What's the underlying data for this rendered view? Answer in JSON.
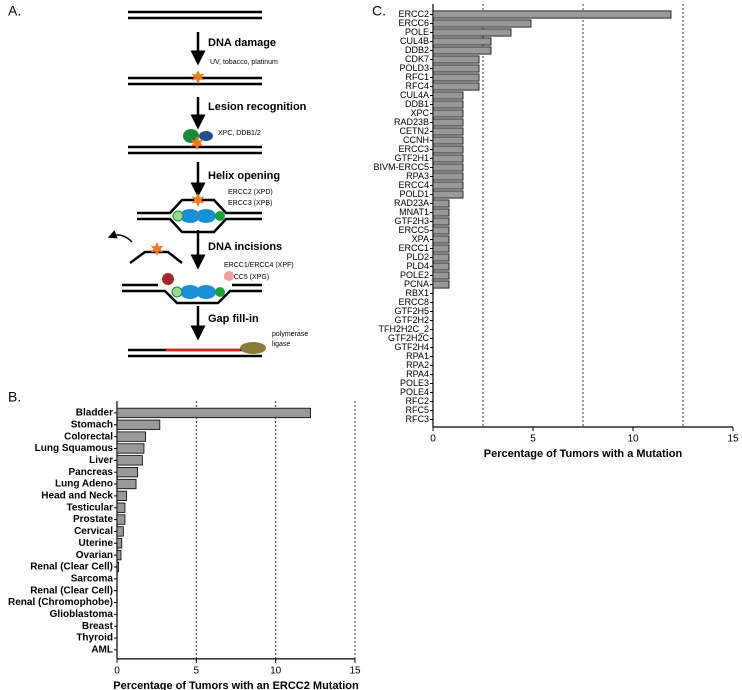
{
  "diagram": {
    "label": "A.",
    "steps": [
      {
        "title": "DNA damage",
        "notes": [
          "UV, tobacco, platinum"
        ]
      },
      {
        "title": "Lesion recognition",
        "notes": [
          "XPC, DDB1/2"
        ]
      },
      {
        "title": "Helix opening",
        "notes": [
          "ERCC2 (XPD)",
          "ERCC3 (XPB)"
        ]
      },
      {
        "title": "DNA incisions",
        "notes": [
          "ERCC1/ERCC4 (XPF)",
          "ERCC5 (XPG)"
        ]
      },
      {
        "title": "Gap fill-in",
        "notes": [
          "polymerase",
          "ligase"
        ]
      }
    ]
  },
  "chart_data": [
    {
      "type": "bar",
      "orientation": "horizontal",
      "panel_label": "B.",
      "x_label": "Percentage of Tumors with an ERCC2 Mutation",
      "categories": [
        "Bladder",
        "Stomach",
        "Colorectal",
        "Lung Squamous",
        "Liver",
        "Pancreas",
        "Lung Adeno",
        "Head and Neck",
        "Testicular",
        "Prostate",
        "Cervical",
        "Uterine",
        "Ovarian",
        "Renal (Clear Cell)",
        "Sarcoma",
        "Renal (Clear Cell)",
        "Renal (Chromophobe)",
        "Glioblastoma",
        "Breast",
        "Thyroid",
        "AML"
      ],
      "values": [
        12.2,
        2.7,
        1.8,
        1.7,
        1.6,
        1.3,
        1.2,
        0.6,
        0.5,
        0.5,
        0.4,
        0.3,
        0.25,
        0.1,
        0,
        0,
        0,
        0,
        0,
        0,
        0
      ],
      "color": "#999999",
      "xlim": [
        0,
        15
      ],
      "xticks": [
        0,
        5,
        10,
        15
      ],
      "grid_lines": [
        5,
        10,
        15
      ]
    },
    {
      "type": "bar",
      "orientation": "horizontal",
      "panel_label": "C.",
      "x_label": "Percentage of Tumors with a Mutation",
      "categories": [
        "ERCC2",
        "ERCC6",
        "POLE",
        "CUL4B",
        "DDB2",
        "CDK7",
        "POLD3",
        "RFC1",
        "RFC4",
        "CUL4A",
        "DDB1",
        "XPC",
        "RAD23B",
        "CETN2",
        "CCNH",
        "ERCC3",
        "GTF2H1",
        "BIVM-ERCC5",
        "RPA3",
        "ERCC4",
        "POLD1",
        "RAD23A",
        "MNAT1",
        "GTF2H3",
        "ERCC5",
        "XPA",
        "ERCC1",
        "PLD2",
        "PLD4",
        "POLE2",
        "PCNA",
        "RBX1",
        "ERCC8",
        "GTF2H5",
        "GTF2H2",
        "TFH2H2C_2",
        "GTF2H2C",
        "GTF2H4",
        "RPA1",
        "RPA2",
        "RPA4",
        "POLE3",
        "POLE4",
        "RFC2",
        "RFC5",
        "RFC3"
      ],
      "values": [
        11.9,
        4.9,
        3.9,
        2.9,
        2.9,
        2.3,
        2.3,
        2.3,
        2.3,
        1.5,
        1.5,
        1.5,
        1.5,
        1.5,
        1.5,
        1.5,
        1.5,
        1.5,
        1.5,
        1.5,
        1.5,
        0.8,
        0.8,
        0.8,
        0.8,
        0.8,
        0.8,
        0.8,
        0.8,
        0.8,
        0.8,
        0,
        0,
        0,
        0,
        0,
        0,
        0,
        0,
        0,
        0,
        0,
        0,
        0,
        0,
        0
      ],
      "color": "#999999",
      "xlim": [
        0,
        15
      ],
      "xticks": [
        0,
        5,
        10,
        15
      ],
      "grid_lines": [
        2.5,
        7.5,
        12.5
      ]
    }
  ]
}
